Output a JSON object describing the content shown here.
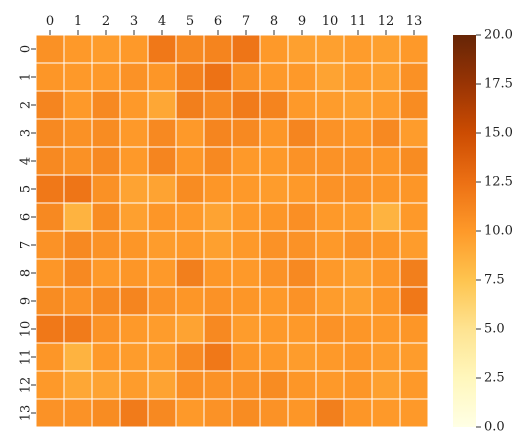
{
  "chart_data": {
    "type": "heatmap",
    "title": "",
    "xlabel": "",
    "ylabel": "",
    "x_labels": [
      "0",
      "1",
      "2",
      "3",
      "4",
      "5",
      "6",
      "7",
      "8",
      "9",
      "10",
      "11",
      "12",
      "13"
    ],
    "y_labels": [
      "0",
      "1",
      "2",
      "3",
      "4",
      "5",
      "6",
      "7",
      "8",
      "9",
      "10",
      "11",
      "12",
      "13"
    ],
    "values": [
      [
        10.5,
        10.0,
        9.8,
        10.0,
        12.0,
        11.0,
        11.3,
        12.2,
        10.0,
        9.6,
        9.6,
        9.8,
        9.6,
        10.0
      ],
      [
        10.2,
        10.0,
        10.0,
        10.4,
        10.2,
        11.5,
        12.4,
        10.5,
        10.0,
        10.0,
        9.4,
        9.8,
        9.6,
        10.5
      ],
      [
        11.2,
        10.0,
        11.0,
        10.0,
        9.2,
        11.6,
        11.0,
        11.8,
        11.3,
        10.0,
        9.8,
        9.6,
        9.8,
        10.8
      ],
      [
        11.0,
        10.5,
        10.8,
        10.0,
        11.0,
        10.0,
        11.2,
        11.0,
        10.2,
        11.2,
        10.4,
        10.2,
        11.0,
        9.8
      ],
      [
        11.0,
        10.5,
        11.0,
        10.0,
        11.2,
        10.2,
        11.0,
        10.0,
        10.0,
        10.4,
        10.4,
        10.4,
        10.2,
        10.8
      ],
      [
        12.0,
        12.2,
        10.5,
        9.4,
        9.4,
        10.8,
        10.2,
        10.0,
        9.8,
        10.0,
        10.4,
        10.4,
        10.2,
        10.2
      ],
      [
        11.0,
        8.5,
        10.8,
        9.6,
        10.2,
        10.0,
        9.4,
        10.0,
        10.2,
        10.6,
        10.0,
        9.8,
        8.5,
        10.0
      ],
      [
        10.4,
        11.0,
        10.4,
        10.2,
        9.8,
        10.0,
        9.6,
        10.0,
        10.4,
        10.4,
        10.0,
        10.4,
        10.2,
        9.8
      ],
      [
        10.2,
        11.0,
        10.0,
        10.2,
        10.0,
        11.6,
        10.2,
        10.0,
        10.4,
        11.0,
        10.0,
        9.6,
        10.2,
        11.6
      ],
      [
        10.8,
        10.4,
        11.0,
        11.2,
        10.4,
        10.2,
        10.4,
        10.2,
        10.0,
        10.4,
        9.8,
        9.6,
        10.2,
        12.0
      ],
      [
        12.0,
        11.8,
        10.4,
        10.0,
        9.8,
        9.4,
        11.0,
        9.8,
        10.0,
        10.0,
        10.4,
        10.2,
        10.0,
        10.2
      ],
      [
        10.2,
        8.5,
        10.0,
        9.8,
        9.8,
        11.0,
        12.0,
        10.2,
        10.0,
        9.8,
        10.0,
        10.2,
        9.8,
        9.8
      ],
      [
        10.0,
        9.2,
        9.4,
        9.8,
        9.4,
        10.6,
        10.4,
        10.4,
        10.8,
        10.2,
        10.0,
        10.2,
        9.6,
        10.0
      ],
      [
        10.4,
        10.4,
        10.8,
        11.8,
        11.0,
        10.0,
        10.4,
        10.8,
        10.4,
        10.2,
        11.6,
        10.2,
        10.0,
        10.0
      ]
    ],
    "vmin": 0,
    "vmax": 20,
    "colorbar_ticks": [
      "0.0",
      "2.5",
      "5.0",
      "7.5",
      "10.0",
      "12.5",
      "15.0",
      "17.5",
      "20.0"
    ],
    "colormap": "YlOrBr",
    "colormap_stops": [
      "#ffffe5",
      "#fff7bc",
      "#fee391",
      "#fec44f",
      "#fe9929",
      "#ec7014",
      "#cc4c02",
      "#993404",
      "#662506"
    ],
    "grid": false,
    "cell_border_color": "#ffffff",
    "x_tick_position": "top",
    "colorbar_position": "right"
  }
}
